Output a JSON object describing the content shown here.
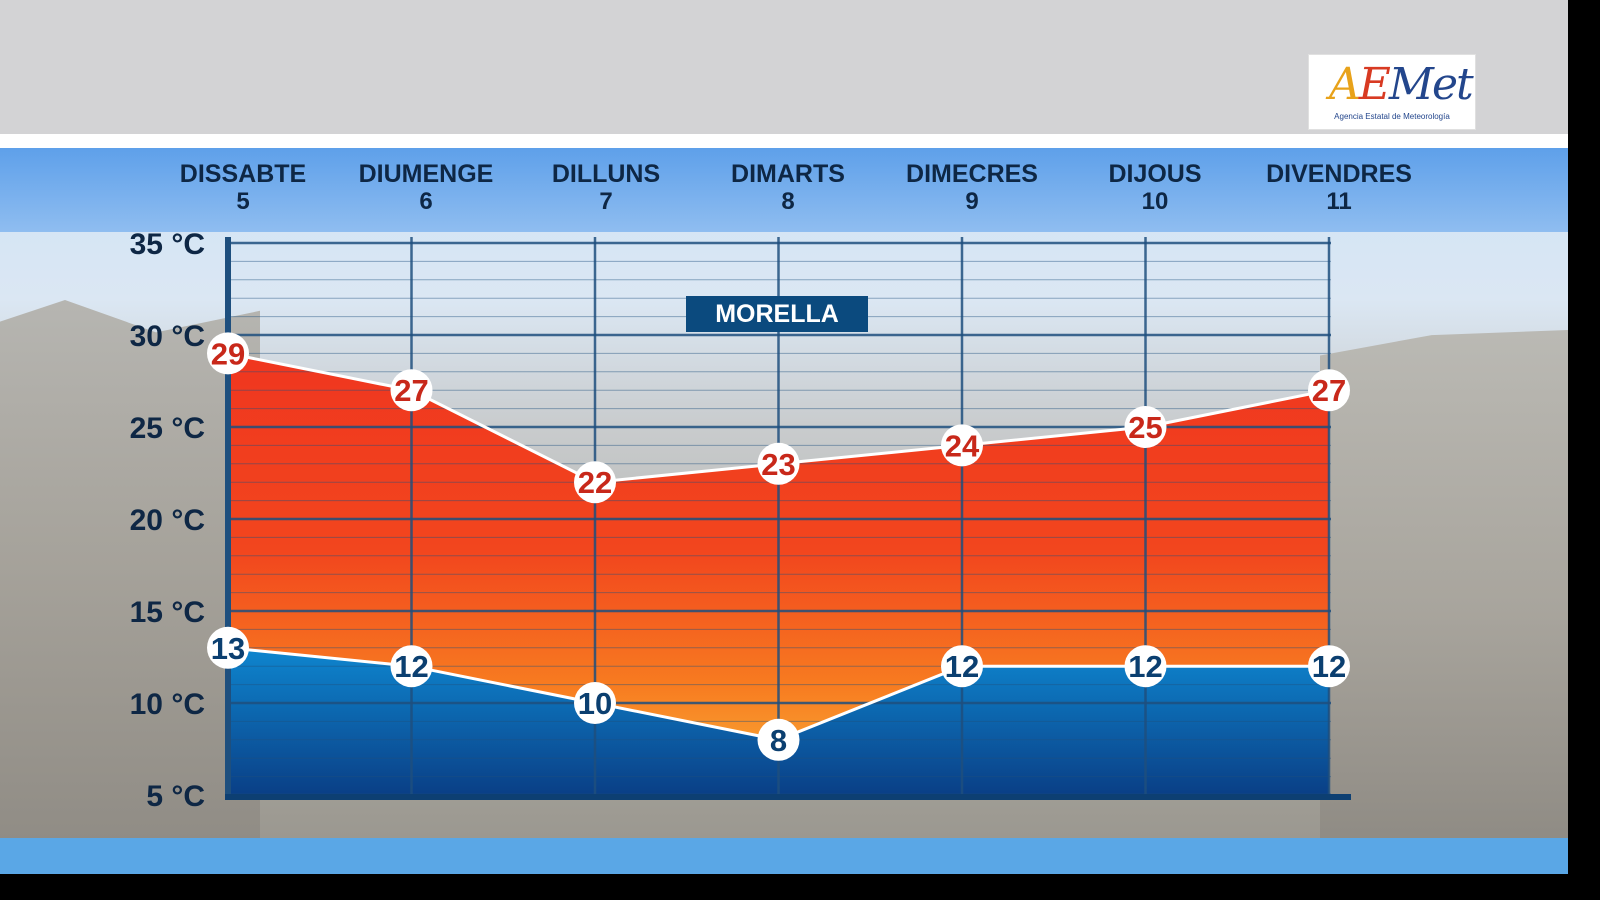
{
  "header": {
    "days": [
      {
        "name": "DISSABTE",
        "num": "5"
      },
      {
        "name": "DIUMENGE",
        "num": "6"
      },
      {
        "name": "DILLUNS",
        "num": "7"
      },
      {
        "name": "DIMARTS",
        "num": "8"
      },
      {
        "name": "DIMECRES",
        "num": "9"
      },
      {
        "name": "DIJOUS",
        "num": "10"
      },
      {
        "name": "DIVENDRES",
        "num": "11"
      }
    ]
  },
  "logo": {
    "word_a": "A",
    "word_e": "E",
    "word_rest": "Met",
    "subtitle": "Agencia Estatal de Meteorología"
  },
  "chart_data": {
    "type": "area",
    "title": "MORELLA",
    "categories": [
      "DISSABTE 5",
      "DIUMENGE 6",
      "DILLUNS 7",
      "DIMARTS 8",
      "DIMECRES 9",
      "DIJOUS 10",
      "DIVENDRES 11"
    ],
    "series": [
      {
        "values": [
          29,
          27,
          22,
          23,
          24,
          25,
          27
        ],
        "color": "#f0371f"
      },
      {
        "values": [
          13,
          12,
          10,
          8,
          12,
          12,
          12
        ],
        "color": "#0b5fa5"
      }
    ],
    "ylim": [
      5,
      35
    ],
    "yticks": [
      "35 °C",
      "30 °C",
      "25 °C",
      "20 °C",
      "15 °C",
      "10 °C",
      "5 °C"
    ],
    "grid": true,
    "colors": {
      "max_label": "#c8281a",
      "min_label": "#0b3f70",
      "grid": "#1e4f7e"
    }
  }
}
